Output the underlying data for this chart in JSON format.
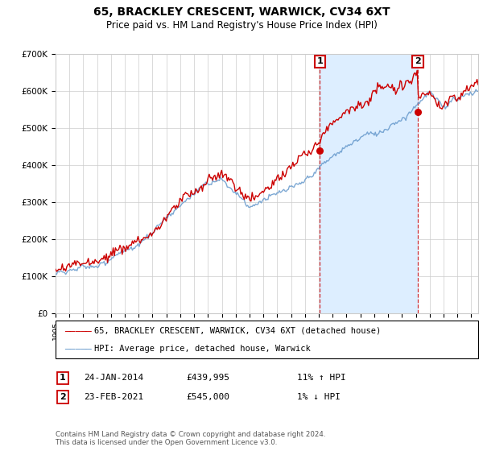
{
  "title": "65, BRACKLEY CRESCENT, WARWICK, CV34 6XT",
  "subtitle": "Price paid vs. HM Land Registry's House Price Index (HPI)",
  "legend_line1": "65, BRACKLEY CRESCENT, WARWICK, CV34 6XT (detached house)",
  "legend_line2": "HPI: Average price, detached house, Warwick",
  "marker1_label": "1",
  "marker1_date": "24-JAN-2014",
  "marker1_price": "£439,995",
  "marker1_hpi": "11% ↑ HPI",
  "marker1_year": 2014.07,
  "marker1_value": 439995,
  "marker2_label": "2",
  "marker2_date": "23-FEB-2021",
  "marker2_price": "£545,000",
  "marker2_hpi": "1% ↓ HPI",
  "marker2_year": 2021.15,
  "marker2_value": 545000,
  "footnote": "Contains HM Land Registry data © Crown copyright and database right 2024.\nThis data is licensed under the Open Government Licence v3.0.",
  "red_color": "#cc0000",
  "blue_color": "#6699cc",
  "marker_box_color": "#cc0000",
  "background_color": "#ffffff",
  "grid_color": "#cccccc",
  "shaded_region_color": "#ddeeff",
  "ylim": [
    0,
    700000
  ],
  "xlim_start": 1995,
  "xlim_end": 2025.5
}
